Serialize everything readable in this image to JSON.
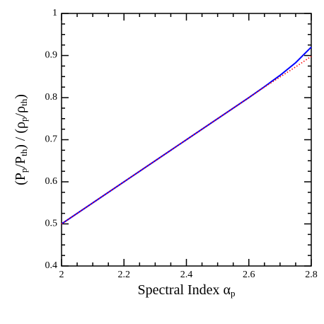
{
  "chart_data": {
    "type": "line",
    "xlabel": [
      "Spectral Index α",
      "p"
    ],
    "ylabel": [
      "(P",
      "p",
      "/P",
      "th",
      ") / (ρ",
      "p",
      "/ρ",
      "th",
      ")"
    ],
    "x": [
      2,
      2.05,
      2.1,
      2.15,
      2.2,
      2.25,
      2.3,
      2.35,
      2.4,
      2.45,
      2.5,
      2.55,
      2.6,
      2.65,
      2.7,
      2.75,
      2.8
    ],
    "series": [
      {
        "color": "#0000ff",
        "dash": "solid",
        "values": [
          0.5,
          0.525,
          0.55,
          0.575,
          0.6,
          0.625,
          0.65,
          0.675,
          0.7,
          0.725,
          0.75,
          0.775,
          0.8,
          0.826,
          0.853,
          0.883,
          0.92
        ]
      },
      {
        "color": "#ff0000",
        "dash": "dotted",
        "values": [
          0.5,
          0.525,
          0.55,
          0.575,
          0.6,
          0.625,
          0.65,
          0.675,
          0.7,
          0.725,
          0.75,
          0.775,
          0.8,
          0.825,
          0.849,
          0.873,
          0.898
        ]
      }
    ],
    "xlim": [
      2,
      2.8
    ],
    "xticks": [
      2,
      2.2,
      2.4,
      2.6,
      2.8
    ],
    "ylim": [
      0.4,
      1
    ],
    "yticks": [
      0.4,
      0.5,
      0.6,
      0.7,
      0.8,
      0.9,
      1
    ]
  }
}
